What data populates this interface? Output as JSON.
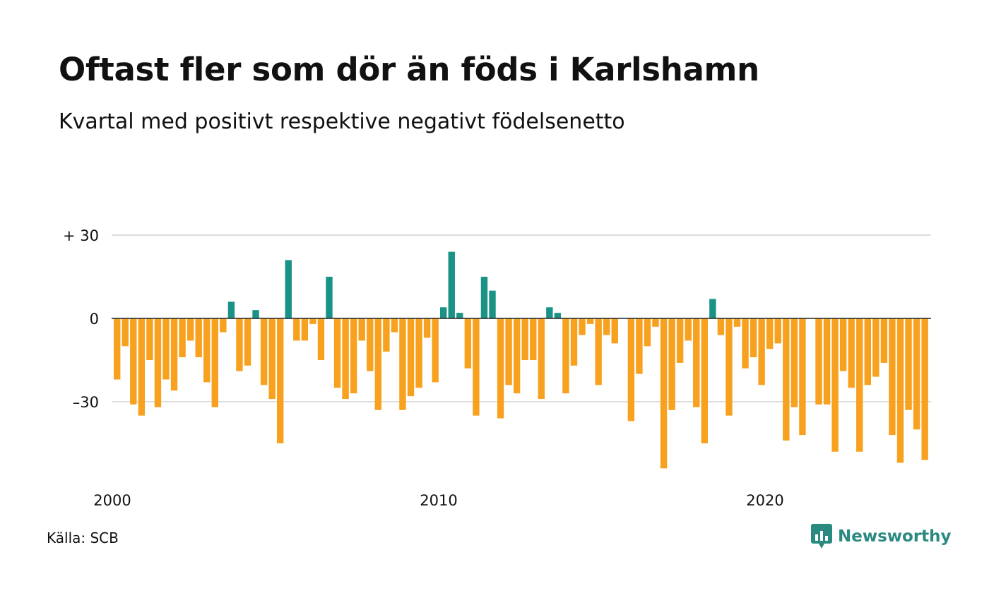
{
  "title": "Oftast fler som dör än föds i Karlshamn",
  "subtitle": "Kvartal med positivt respektive negativt födelsenetto",
  "source": "Källa: SCB",
  "brand": {
    "name": "Newsworthy",
    "icon": "newsworthy-logo-icon",
    "color": "#2a8a80"
  },
  "colors": {
    "positive": "#1a9386",
    "negative": "#f7a11f",
    "grid": "#dddddd",
    "zero_line": "#222222"
  },
  "chart_data": {
    "type": "bar",
    "x_start": {
      "year": 2000,
      "quarter": 1
    },
    "x_ticks": [
      {
        "label": "2000",
        "year": 2000
      },
      {
        "label": "2010",
        "year": 2010
      },
      {
        "label": "2020",
        "year": 2020
      }
    ],
    "y_ticks": [
      {
        "label": "+ 30",
        "value": 30
      },
      {
        "label": "0",
        "value": 0
      },
      {
        "label": "–30",
        "value": -30
      }
    ],
    "ylim": [
      -55,
      31
    ],
    "grid": true,
    "values": [
      -22,
      -10,
      -31,
      -35,
      -15,
      -32,
      -22,
      -26,
      -14,
      -8,
      -14,
      -23,
      -32,
      -5,
      6,
      -19,
      -17,
      3,
      -24,
      -29,
      -45,
      21,
      -8,
      -8,
      -2,
      -15,
      15,
      -25,
      -29,
      -27,
      -8,
      -19,
      -33,
      -12,
      -5,
      -33,
      -28,
      -25,
      -7,
      -23,
      4,
      24,
      2,
      -18,
      -35,
      15,
      10,
      -36,
      -24,
      -27,
      -15,
      -15,
      -29,
      4,
      2,
      -27,
      -17,
      -6,
      -2,
      -24,
      -6,
      -9,
      0,
      -37,
      -20,
      -10,
      -3,
      -54,
      -33,
      -16,
      -8,
      -32,
      -45,
      7,
      -6,
      -35,
      -3,
      -18,
      -14,
      -24,
      -11,
      -9,
      -44,
      -32,
      -42,
      0,
      -31,
      -31,
      -48,
      -19,
      -25,
      -48,
      -24,
      -21,
      -16,
      -42,
      -52,
      -33,
      -40,
      -51
    ]
  }
}
